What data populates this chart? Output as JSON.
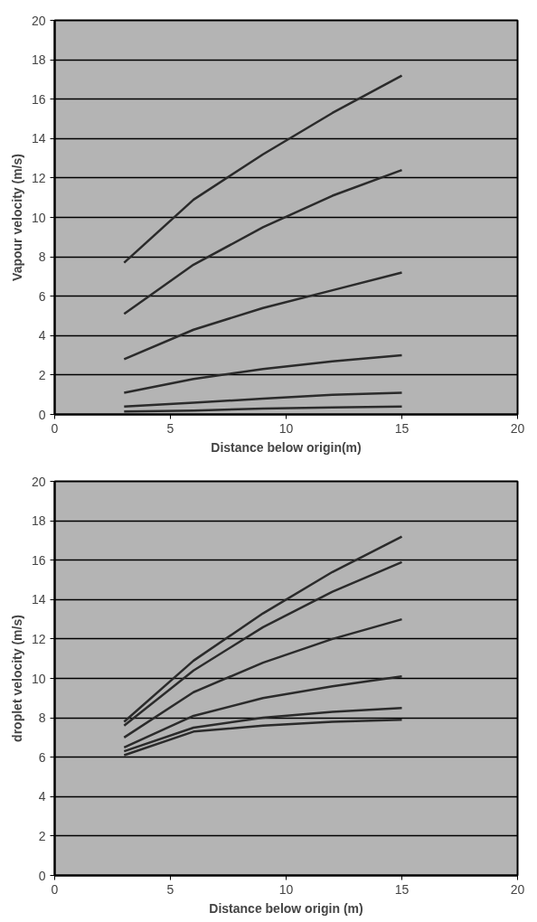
{
  "chart_data": [
    {
      "type": "line",
      "xlabel": "Distance below origin(m)",
      "ylabel": "Vapour velocity (m/s)",
      "x": [
        3,
        6,
        9,
        12,
        15
      ],
      "series": [
        {
          "color": "#2b2b2b",
          "values": [
            7.7,
            10.9,
            13.2,
            15.3,
            17.2
          ]
        },
        {
          "color": "#2b2b2b",
          "values": [
            5.1,
            7.6,
            9.5,
            11.1,
            12.4
          ]
        },
        {
          "color": "#2b2b2b",
          "values": [
            2.8,
            4.3,
            5.4,
            6.3,
            7.2
          ]
        },
        {
          "color": "#2b2b2b",
          "values": [
            1.1,
            1.8,
            2.3,
            2.7,
            3.0
          ]
        },
        {
          "color": "#2b2b2b",
          "values": [
            0.4,
            0.6,
            0.8,
            1.0,
            1.1
          ]
        },
        {
          "color": "#2b2b2b",
          "values": [
            0.15,
            0.2,
            0.3,
            0.35,
            0.4
          ]
        }
      ],
      "xlim": [
        0,
        20
      ],
      "xticks": [
        0,
        5,
        10,
        15,
        20
      ],
      "ylim": [
        0,
        20
      ],
      "yticks": [
        0,
        2,
        4,
        6,
        8,
        10,
        12,
        14,
        16,
        18,
        20
      ],
      "grid": "y",
      "line_style": "solid"
    },
    {
      "type": "line",
      "xlabel": "Distance below origin (m)",
      "ylabel": "droplet velocity (m/s)",
      "x": [
        3,
        6,
        9,
        12,
        15
      ],
      "series": [
        {
          "color": "#2b2b2b",
          "values": [
            7.8,
            10.9,
            13.3,
            15.4,
            17.2
          ]
        },
        {
          "color": "#2b2b2b",
          "values": [
            7.6,
            10.4,
            12.6,
            14.4,
            15.9
          ]
        },
        {
          "color": "#2b2b2b",
          "values": [
            7.0,
            9.3,
            10.8,
            12.0,
            13.0
          ]
        },
        {
          "color": "#2b2b2b",
          "values": [
            6.5,
            8.1,
            9.0,
            9.6,
            10.1
          ]
        },
        {
          "color": "#2b2b2b",
          "values": [
            6.3,
            7.5,
            8.0,
            8.3,
            8.5
          ]
        },
        {
          "color": "#2b2b2b",
          "values": [
            6.1,
            7.3,
            7.6,
            7.8,
            7.9
          ]
        }
      ],
      "xlim": [
        0,
        20
      ],
      "xticks": [
        0,
        5,
        10,
        15,
        20
      ],
      "ylim": [
        0,
        20
      ],
      "yticks": [
        0,
        2,
        4,
        6,
        8,
        10,
        12,
        14,
        16,
        18,
        20
      ],
      "grid": "y",
      "line_style": "solid"
    }
  ]
}
